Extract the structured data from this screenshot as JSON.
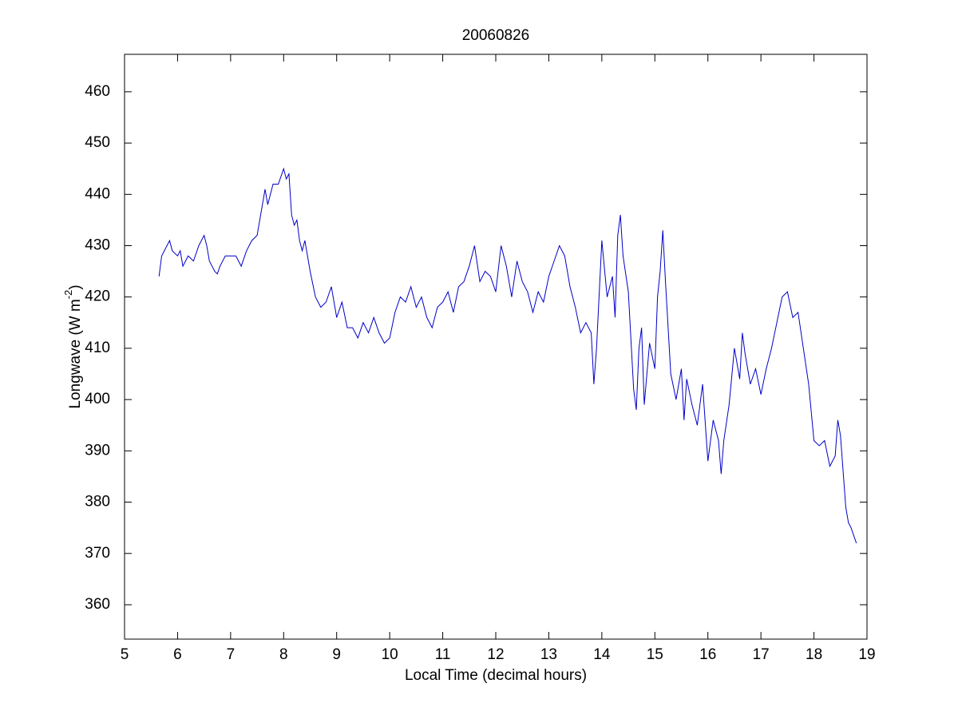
{
  "chart_data": {
    "type": "line",
    "title": "20060826",
    "xlabel": "Local Time (decimal hours)",
    "ylabel": {
      "text": "Longwave (W m",
      "superscript": "-2",
      "suffix": ")"
    },
    "x": [
      5.65,
      5.7,
      5.8,
      5.85,
      5.9,
      6.0,
      6.05,
      6.1,
      6.2,
      6.3,
      6.4,
      6.5,
      6.55,
      6.6,
      6.7,
      6.75,
      6.8,
      6.9,
      7.0,
      7.1,
      7.2,
      7.3,
      7.4,
      7.5,
      7.6,
      7.65,
      7.7,
      7.8,
      7.9,
      8.0,
      8.05,
      8.1,
      8.15,
      8.2,
      8.25,
      8.3,
      8.35,
      8.4,
      8.5,
      8.6,
      8.7,
      8.8,
      8.9,
      9.0,
      9.1,
      9.2,
      9.3,
      9.4,
      9.5,
      9.6,
      9.7,
      9.8,
      9.9,
      10.0,
      10.1,
      10.2,
      10.3,
      10.4,
      10.5,
      10.6,
      10.7,
      10.8,
      10.9,
      11.0,
      11.1,
      11.2,
      11.3,
      11.4,
      11.5,
      11.6,
      11.7,
      11.8,
      11.9,
      12.0,
      12.1,
      12.2,
      12.3,
      12.4,
      12.5,
      12.6,
      12.7,
      12.8,
      12.9,
      13.0,
      13.1,
      13.2,
      13.3,
      13.4,
      13.5,
      13.6,
      13.7,
      13.8,
      13.85,
      13.9,
      14.0,
      14.1,
      14.2,
      14.25,
      14.3,
      14.35,
      14.4,
      14.5,
      14.6,
      14.65,
      14.7,
      14.75,
      14.8,
      14.9,
      15.0,
      15.05,
      15.1,
      15.15,
      15.2,
      15.3,
      15.4,
      15.5,
      15.55,
      15.6,
      15.7,
      15.8,
      15.9,
      16.0,
      16.1,
      16.2,
      16.25,
      16.3,
      16.4,
      16.5,
      16.6,
      16.65,
      16.7,
      16.8,
      16.9,
      17.0,
      17.1,
      17.2,
      17.3,
      17.4,
      17.5,
      17.6,
      17.7,
      17.8,
      17.9,
      18.0,
      18.1,
      18.2,
      18.3,
      18.4,
      18.45,
      18.5,
      18.6,
      18.65,
      18.7,
      18.8
    ],
    "series": [
      {
        "name": "Longwave",
        "color": "#0000c8",
        "values": [
          424,
          428,
          430,
          431,
          429,
          428,
          429,
          426,
          428,
          427,
          430,
          432,
          430,
          427,
          425,
          424.5,
          426,
          428,
          428,
          428,
          426,
          429,
          431,
          432,
          438,
          441,
          438,
          442,
          442,
          445,
          443,
          444,
          436,
          434,
          435,
          431,
          429,
          431,
          425,
          420,
          418,
          419,
          422,
          416,
          419,
          414,
          414,
          412,
          415,
          413,
          416,
          413,
          411,
          412,
          417,
          420,
          419,
          422,
          418,
          420,
          416,
          414,
          418,
          419,
          421,
          417,
          422,
          423,
          426,
          430,
          423,
          425,
          424,
          421,
          430,
          426,
          420,
          427,
          423,
          421,
          417,
          421,
          419,
          424,
          427,
          430,
          428,
          422,
          418,
          413,
          415,
          413,
          403,
          410,
          431,
          420,
          424,
          416,
          432,
          436,
          428,
          421,
          402,
          398,
          410,
          414,
          399,
          411,
          406,
          420,
          425,
          433,
          423,
          405,
          400,
          406,
          396,
          404,
          399,
          395,
          403,
          388,
          396,
          392,
          385.5,
          392,
          399,
          410,
          404,
          413,
          409,
          403,
          406,
          401,
          406,
          410,
          415,
          420,
          421,
          416,
          417,
          410,
          403,
          392,
          391,
          392,
          387,
          389,
          396,
          393,
          379,
          376,
          375,
          372
        ]
      }
    ],
    "xlim": [
      5,
      19
    ],
    "xticks": [
      5,
      6,
      7,
      8,
      9,
      10,
      11,
      12,
      13,
      14,
      15,
      16,
      17,
      18,
      19
    ],
    "ylim": [
      353.3,
      467.3
    ],
    "yticks": [
      360,
      370,
      380,
      390,
      400,
      410,
      420,
      430,
      440,
      450,
      460
    ]
  }
}
